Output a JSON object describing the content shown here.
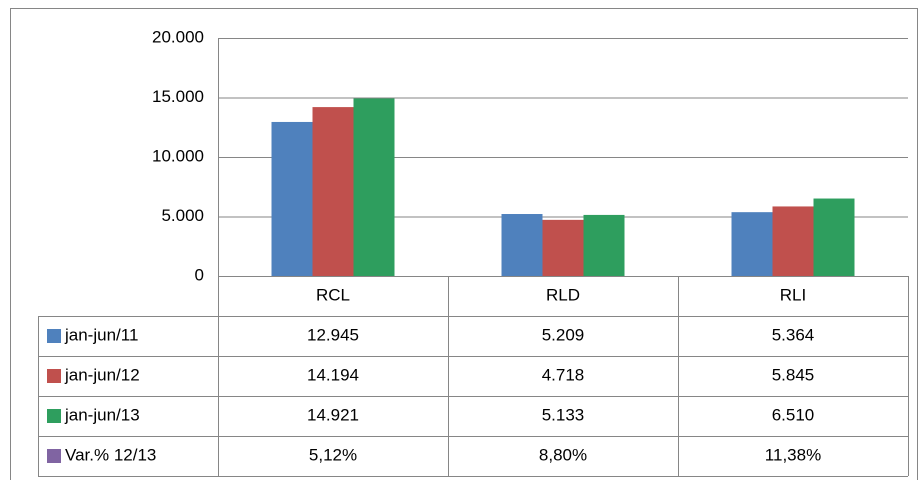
{
  "chart_data": {
    "type": "bar",
    "categories": [
      "RCL",
      "RLD",
      "RLI"
    ],
    "series": [
      {
        "name": "jan-jun/11",
        "color": "#4f81bd",
        "values": [
          12945,
          5209,
          5364
        ],
        "value_labels": [
          "12.945",
          "5.209",
          "5.364"
        ]
      },
      {
        "name": "jan-jun/12",
        "color": "#c0504d",
        "values": [
          14194,
          4718,
          5845
        ],
        "value_labels": [
          "14.194",
          "4.718",
          "5.845"
        ]
      },
      {
        "name": "jan-jun/13",
        "color": "#2e9e5e",
        "values": [
          14921,
          5133,
          6510
        ],
        "value_labels": [
          "14.921",
          "5.133",
          "6.510"
        ]
      },
      {
        "name": "Var.% 12/13",
        "color": "#8064a2",
        "values": [
          5.12,
          8.8,
          11.38
        ],
        "value_labels": [
          "5,12%",
          "8,80%",
          "11,38%"
        ],
        "table_only": true
      }
    ],
    "ylim": [
      0,
      20000
    ],
    "yticks": [
      0,
      {
        "value": 5000,
        "label": "5.000"
      },
      {
        "value": 10000,
        "label": "10.000"
      },
      {
        "value": 15000,
        "label": "15.000"
      },
      {
        "value": 20000,
        "label": "20.000"
      }
    ],
    "grid": true
  }
}
